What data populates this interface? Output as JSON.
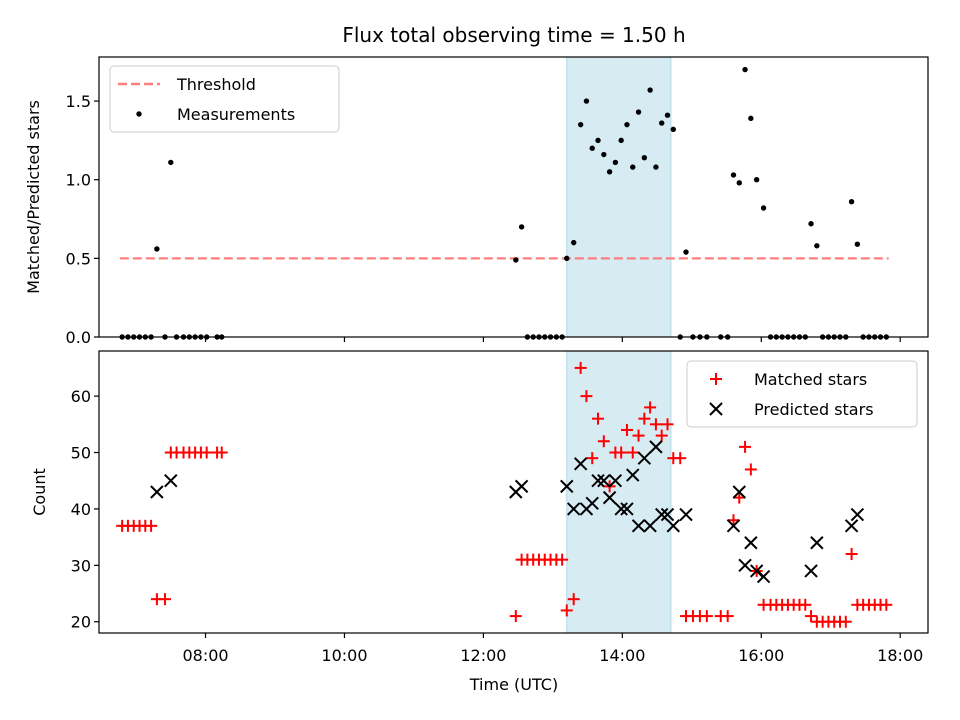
{
  "title": "Flux total observing time = 1.50 h",
  "colors": {
    "threshold": "#ff7f7f",
    "measurement": "#000000",
    "matched": "#ff0000",
    "predicted": "#000000",
    "highlight": "#add8e6"
  },
  "chart_data": [
    {
      "type": "scatter",
      "panel": "top",
      "ylabel": "Matched/Predicted stars",
      "xlabel": "",
      "xlim": [
        "06:28",
        "18:24"
      ],
      "ylim": [
        0.0,
        1.78
      ],
      "yticks": [
        0.0,
        0.5,
        1.0,
        1.5
      ],
      "ytick_labels": [
        "0.0",
        "0.5",
        "1.0",
        "1.5"
      ],
      "highlight_span": [
        "13:12",
        "14:42"
      ],
      "legend": {
        "placement": "upper left",
        "entries": [
          "Threshold",
          "Measurements"
        ]
      },
      "threshold": {
        "name": "Threshold",
        "y": 0.5,
        "x_range": [
          "06:46",
          "17:50"
        ]
      },
      "series": [
        {
          "name": "Measurements",
          "marker": "dot",
          "points": [
            [
              "06:48",
              0
            ],
            [
              "06:53",
              0
            ],
            [
              "06:58",
              0
            ],
            [
              "07:03",
              0
            ],
            [
              "07:08",
              0
            ],
            [
              "07:13",
              0
            ],
            [
              "07:18",
              0.56
            ],
            [
              "07:25",
              0
            ],
            [
              "07:30",
              1.11
            ],
            [
              "07:35",
              0
            ],
            [
              "07:41",
              0
            ],
            [
              "07:46",
              0
            ],
            [
              "07:51",
              0
            ],
            [
              "07:56",
              0
            ],
            [
              "08:01",
              0
            ],
            [
              "08:10",
              0
            ],
            [
              "08:14",
              0
            ],
            [
              "12:28",
              0.49
            ],
            [
              "12:33",
              0.7
            ],
            [
              "12:38",
              0
            ],
            [
              "12:43",
              0
            ],
            [
              "12:48",
              0
            ],
            [
              "12:53",
              0
            ],
            [
              "12:58",
              0
            ],
            [
              "13:03",
              0
            ],
            [
              "13:08",
              0
            ],
            [
              "13:12",
              0.5
            ],
            [
              "13:18",
              0.6
            ],
            [
              "13:24",
              1.35
            ],
            [
              "13:29",
              1.5
            ],
            [
              "13:34",
              1.2
            ],
            [
              "13:39",
              1.25
            ],
            [
              "13:44",
              1.16
            ],
            [
              "13:49",
              1.05
            ],
            [
              "13:54",
              1.11
            ],
            [
              "13:59",
              1.25
            ],
            [
              "14:04",
              1.35
            ],
            [
              "14:09",
              1.08
            ],
            [
              "14:14",
              1.43
            ],
            [
              "14:19",
              1.14
            ],
            [
              "14:24",
              1.57
            ],
            [
              "14:29",
              1.08
            ],
            [
              "14:34",
              1.36
            ],
            [
              "14:39",
              1.41
            ],
            [
              "14:44",
              1.32
            ],
            [
              "14:50",
              0
            ],
            [
              "14:55",
              0.54
            ],
            [
              "15:01",
              0
            ],
            [
              "15:07",
              0
            ],
            [
              "15:13",
              0
            ],
            [
              "15:25",
              0
            ],
            [
              "15:31",
              0
            ],
            [
              "15:36",
              1.03
            ],
            [
              "15:41",
              0.98
            ],
            [
              "15:46",
              1.7
            ],
            [
              "15:51",
              1.39
            ],
            [
              "15:56",
              1.0
            ],
            [
              "16:02",
              0.82
            ],
            [
              "16:08",
              0
            ],
            [
              "16:13",
              0
            ],
            [
              "16:18",
              0
            ],
            [
              "16:23",
              0
            ],
            [
              "16:28",
              0
            ],
            [
              "16:33",
              0
            ],
            [
              "16:38",
              0
            ],
            [
              "16:43",
              0.72
            ],
            [
              "16:48",
              0.58
            ],
            [
              "16:53",
              0
            ],
            [
              "16:58",
              0
            ],
            [
              "17:03",
              0
            ],
            [
              "17:08",
              0
            ],
            [
              "17:13",
              0
            ],
            [
              "17:18",
              0.86
            ],
            [
              "17:23",
              0.59
            ],
            [
              "17:28",
              0
            ],
            [
              "17:33",
              0
            ],
            [
              "17:38",
              0
            ],
            [
              "17:43",
              0
            ],
            [
              "17:48",
              0
            ]
          ]
        }
      ]
    },
    {
      "type": "scatter",
      "panel": "bottom",
      "ylabel": "Count",
      "xlabel": "Time (UTC)",
      "xlim": [
        "06:28",
        "18:24"
      ],
      "ylim": [
        18,
        68
      ],
      "yticks": [
        20,
        30,
        40,
        50,
        60
      ],
      "ytick_labels": [
        "20",
        "30",
        "40",
        "50",
        "60"
      ],
      "xticks": [
        "08:00",
        "10:00",
        "12:00",
        "14:00",
        "16:00",
        "18:00"
      ],
      "xtick_labels": [
        "08:00",
        "10:00",
        "12:00",
        "14:00",
        "16:00",
        "18:00"
      ],
      "highlight_span": [
        "13:12",
        "14:42"
      ],
      "legend": {
        "placement": "upper right",
        "entries": [
          "Matched stars",
          "Predicted stars"
        ]
      },
      "series": [
        {
          "name": "Matched stars",
          "marker": "plus",
          "points": [
            [
              "06:48",
              37
            ],
            [
              "06:53",
              37
            ],
            [
              "06:58",
              37
            ],
            [
              "07:03",
              37
            ],
            [
              "07:08",
              37
            ],
            [
              "07:13",
              37
            ],
            [
              "07:18",
              24
            ],
            [
              "07:25",
              24
            ],
            [
              "07:30",
              50
            ],
            [
              "07:35",
              50
            ],
            [
              "07:41",
              50
            ],
            [
              "07:46",
              50
            ],
            [
              "07:51",
              50
            ],
            [
              "07:56",
              50
            ],
            [
              "08:01",
              50
            ],
            [
              "08:10",
              50
            ],
            [
              "08:14",
              50
            ],
            [
              "12:28",
              21
            ],
            [
              "12:33",
              31
            ],
            [
              "12:38",
              31
            ],
            [
              "12:43",
              31
            ],
            [
              "12:48",
              31
            ],
            [
              "12:53",
              31
            ],
            [
              "12:58",
              31
            ],
            [
              "13:03",
              31
            ],
            [
              "13:08",
              31
            ],
            [
              "13:12",
              22
            ],
            [
              "13:18",
              24
            ],
            [
              "13:24",
              65
            ],
            [
              "13:29",
              60
            ],
            [
              "13:34",
              49
            ],
            [
              "13:39",
              56
            ],
            [
              "13:44",
              52
            ],
            [
              "13:49",
              44
            ],
            [
              "13:54",
              50
            ],
            [
              "13:59",
              50
            ],
            [
              "14:04",
              54
            ],
            [
              "14:09",
              50
            ],
            [
              "14:14",
              53
            ],
            [
              "14:19",
              56
            ],
            [
              "14:24",
              58
            ],
            [
              "14:29",
              55
            ],
            [
              "14:34",
              53
            ],
            [
              "14:39",
              55
            ],
            [
              "14:44",
              49
            ],
            [
              "14:50",
              49
            ],
            [
              "14:55",
              21
            ],
            [
              "15:01",
              21
            ],
            [
              "15:07",
              21
            ],
            [
              "15:13",
              21
            ],
            [
              "15:25",
              21
            ],
            [
              "15:31",
              21
            ],
            [
              "15:36",
              38
            ],
            [
              "15:41",
              42
            ],
            [
              "15:46",
              51
            ],
            [
              "15:51",
              47
            ],
            [
              "15:56",
              29
            ],
            [
              "16:02",
              23
            ],
            [
              "16:08",
              23
            ],
            [
              "16:13",
              23
            ],
            [
              "16:18",
              23
            ],
            [
              "16:23",
              23
            ],
            [
              "16:28",
              23
            ],
            [
              "16:33",
              23
            ],
            [
              "16:38",
              23
            ],
            [
              "16:43",
              21
            ],
            [
              "16:48",
              20
            ],
            [
              "16:53",
              20
            ],
            [
              "16:58",
              20
            ],
            [
              "17:03",
              20
            ],
            [
              "17:08",
              20
            ],
            [
              "17:13",
              20
            ],
            [
              "17:18",
              32
            ],
            [
              "17:23",
              23
            ],
            [
              "17:28",
              23
            ],
            [
              "17:33",
              23
            ],
            [
              "17:38",
              23
            ],
            [
              "17:43",
              23
            ],
            [
              "17:48",
              23
            ]
          ]
        },
        {
          "name": "Predicted stars",
          "marker": "x",
          "points": [
            [
              "07:18",
              43
            ],
            [
              "07:30",
              45
            ],
            [
              "12:28",
              43
            ],
            [
              "12:33",
              44
            ],
            [
              "13:12",
              44
            ],
            [
              "13:18",
              40
            ],
            [
              "13:24",
              48
            ],
            [
              "13:29",
              40
            ],
            [
              "13:34",
              41
            ],
            [
              "13:39",
              45
            ],
            [
              "13:44",
              45
            ],
            [
              "13:49",
              42
            ],
            [
              "13:54",
              45
            ],
            [
              "13:59",
              40
            ],
            [
              "14:04",
              40
            ],
            [
              "14:09",
              46
            ],
            [
              "14:14",
              37
            ],
            [
              "14:19",
              49
            ],
            [
              "14:24",
              37
            ],
            [
              "14:29",
              51
            ],
            [
              "14:34",
              39
            ],
            [
              "14:39",
              39
            ],
            [
              "14:44",
              37
            ],
            [
              "14:55",
              39
            ],
            [
              "15:36",
              37
            ],
            [
              "15:41",
              43
            ],
            [
              "15:46",
              30
            ],
            [
              "15:51",
              34
            ],
            [
              "15:56",
              29
            ],
            [
              "16:02",
              28
            ],
            [
              "16:43",
              29
            ],
            [
              "16:48",
              34
            ],
            [
              "17:18",
              37
            ],
            [
              "17:23",
              39
            ]
          ]
        }
      ]
    }
  ]
}
